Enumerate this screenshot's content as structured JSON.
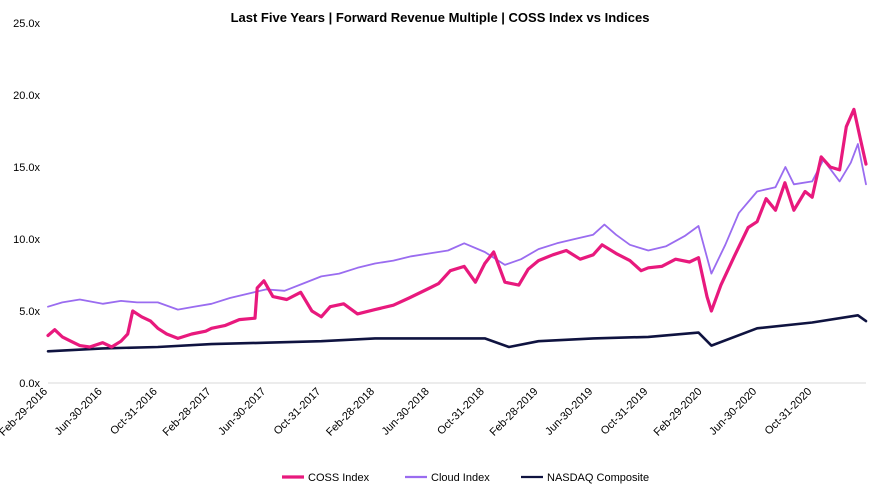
{
  "chart_data": {
    "type": "line",
    "title": "Last Five Years | Forward Revenue Multiple | COSS Index vs Indices",
    "xlabel": "",
    "ylabel": "",
    "ylim": [
      0,
      25
    ],
    "y_ticks": [
      "0.0x",
      "5.0x",
      "10.0x",
      "15.0x",
      "20.0x",
      "25.0x"
    ],
    "y_tick_values": [
      0,
      5,
      10,
      15,
      20,
      25
    ],
    "x_range": [
      "2016-02-29",
      "2021-02-28"
    ],
    "x_ticks": [
      {
        "label": "Feb-29-2016",
        "date": "2016-02-29"
      },
      {
        "label": "Jun-30-2016",
        "date": "2016-06-30"
      },
      {
        "label": "Oct-31-2016",
        "date": "2016-10-31"
      },
      {
        "label": "Feb-28-2017",
        "date": "2017-02-28"
      },
      {
        "label": "Jun-30-2017",
        "date": "2017-06-30"
      },
      {
        "label": "Oct-31-2017",
        "date": "2017-10-31"
      },
      {
        "label": "Feb-28-2018",
        "date": "2018-02-28"
      },
      {
        "label": "Jun-30-2018",
        "date": "2018-06-30"
      },
      {
        "label": "Oct-31-2018",
        "date": "2018-10-31"
      },
      {
        "label": "Feb-28-2019",
        "date": "2019-02-28"
      },
      {
        "label": "Jun-30-2019",
        "date": "2019-06-30"
      },
      {
        "label": "Oct-31-2019",
        "date": "2019-10-31"
      },
      {
        "label": "Feb-29-2020",
        "date": "2020-02-29"
      },
      {
        "label": "Jun-30-2020",
        "date": "2020-06-30"
      },
      {
        "label": "Oct-31-2020",
        "date": "2020-10-31"
      }
    ],
    "grid": false,
    "legend_position": "bottom",
    "series": [
      {
        "name": "COSS Index",
        "color": "#e8197d",
        "points": [
          [
            "2016-02-29",
            3.3
          ],
          [
            "2016-03-15",
            3.7
          ],
          [
            "2016-04-01",
            3.2
          ],
          [
            "2016-04-20",
            2.9
          ],
          [
            "2016-05-10",
            2.6
          ],
          [
            "2016-06-01",
            2.5
          ],
          [
            "2016-06-30",
            2.8
          ],
          [
            "2016-07-20",
            2.5
          ],
          [
            "2016-08-10",
            2.9
          ],
          [
            "2016-08-25",
            3.4
          ],
          [
            "2016-09-05",
            5.0
          ],
          [
            "2016-09-25",
            4.6
          ],
          [
            "2016-10-15",
            4.3
          ],
          [
            "2016-10-31",
            3.8
          ],
          [
            "2016-11-20",
            3.4
          ],
          [
            "2016-12-15",
            3.1
          ],
          [
            "2017-01-15",
            3.4
          ],
          [
            "2017-02-15",
            3.6
          ],
          [
            "2017-02-28",
            3.8
          ],
          [
            "2017-03-31",
            4.0
          ],
          [
            "2017-05-01",
            4.4
          ],
          [
            "2017-06-05",
            4.5
          ],
          [
            "2017-06-10",
            6.6
          ],
          [
            "2017-06-25",
            7.1
          ],
          [
            "2017-07-15",
            6.0
          ],
          [
            "2017-08-15",
            5.8
          ],
          [
            "2017-09-15",
            6.3
          ],
          [
            "2017-10-10",
            5.0
          ],
          [
            "2017-10-31",
            4.6
          ],
          [
            "2017-11-20",
            5.3
          ],
          [
            "2017-12-20",
            5.5
          ],
          [
            "2018-01-20",
            4.8
          ],
          [
            "2018-02-28",
            5.1
          ],
          [
            "2018-04-10",
            5.4
          ],
          [
            "2018-05-15",
            5.9
          ],
          [
            "2018-06-30",
            6.6
          ],
          [
            "2018-07-20",
            6.9
          ],
          [
            "2018-08-15",
            7.8
          ],
          [
            "2018-09-15",
            8.1
          ],
          [
            "2018-10-10",
            7.0
          ],
          [
            "2018-10-31",
            8.3
          ],
          [
            "2018-11-20",
            9.1
          ],
          [
            "2018-12-15",
            7.0
          ],
          [
            "2019-01-15",
            6.8
          ],
          [
            "2019-02-05",
            7.9
          ],
          [
            "2019-02-28",
            8.5
          ],
          [
            "2019-04-01",
            8.9
          ],
          [
            "2019-05-01",
            9.2
          ],
          [
            "2019-06-01",
            8.6
          ],
          [
            "2019-06-30",
            8.9
          ],
          [
            "2019-07-20",
            9.6
          ],
          [
            "2019-08-20",
            9.0
          ],
          [
            "2019-09-20",
            8.5
          ],
          [
            "2019-10-15",
            7.8
          ],
          [
            "2019-10-31",
            8.0
          ],
          [
            "2019-11-30",
            8.1
          ],
          [
            "2019-12-31",
            8.6
          ],
          [
            "2020-01-31",
            8.4
          ],
          [
            "2020-02-20",
            8.7
          ],
          [
            "2020-03-10",
            6.0
          ],
          [
            "2020-03-20",
            5.0
          ],
          [
            "2020-04-10",
            6.8
          ],
          [
            "2020-05-10",
            8.8
          ],
          [
            "2020-06-10",
            10.8
          ],
          [
            "2020-06-30",
            11.2
          ],
          [
            "2020-07-20",
            12.8
          ],
          [
            "2020-08-10",
            12.0
          ],
          [
            "2020-08-31",
            13.9
          ],
          [
            "2020-09-20",
            12.0
          ],
          [
            "2020-10-15",
            13.3
          ],
          [
            "2020-10-31",
            12.9
          ],
          [
            "2020-11-20",
            15.7
          ],
          [
            "2020-12-10",
            15.0
          ],
          [
            "2020-12-31",
            14.8
          ],
          [
            "2021-01-15",
            17.8
          ],
          [
            "2021-02-01",
            19.0
          ],
          [
            "2021-02-15",
            17.0
          ],
          [
            "2021-02-28",
            15.2
          ]
        ]
      },
      {
        "name": "Cloud Index",
        "color": "#9a6cf0",
        "points": [
          [
            "2016-02-29",
            5.3
          ],
          [
            "2016-04-01",
            5.6
          ],
          [
            "2016-05-10",
            5.8
          ],
          [
            "2016-06-30",
            5.5
          ],
          [
            "2016-08-10",
            5.7
          ],
          [
            "2016-09-15",
            5.6
          ],
          [
            "2016-10-31",
            5.6
          ],
          [
            "2016-12-15",
            5.1
          ],
          [
            "2017-01-20",
            5.3
          ],
          [
            "2017-02-28",
            5.5
          ],
          [
            "2017-04-10",
            5.9
          ],
          [
            "2017-05-20",
            6.2
          ],
          [
            "2017-06-30",
            6.5
          ],
          [
            "2017-08-10",
            6.4
          ],
          [
            "2017-09-20",
            6.9
          ],
          [
            "2017-10-31",
            7.4
          ],
          [
            "2017-12-10",
            7.6
          ],
          [
            "2018-01-20",
            8.0
          ],
          [
            "2018-02-28",
            8.3
          ],
          [
            "2018-04-10",
            8.5
          ],
          [
            "2018-05-20",
            8.8
          ],
          [
            "2018-06-30",
            9.0
          ],
          [
            "2018-08-10",
            9.2
          ],
          [
            "2018-09-15",
            9.7
          ],
          [
            "2018-10-31",
            9.1
          ],
          [
            "2018-12-15",
            8.2
          ],
          [
            "2019-01-20",
            8.6
          ],
          [
            "2019-02-28",
            9.3
          ],
          [
            "2019-04-10",
            9.7
          ],
          [
            "2019-05-20",
            10.0
          ],
          [
            "2019-06-30",
            10.3
          ],
          [
            "2019-07-25",
            11.0
          ],
          [
            "2019-08-20",
            10.3
          ],
          [
            "2019-09-20",
            9.6
          ],
          [
            "2019-10-31",
            9.2
          ],
          [
            "2019-12-10",
            9.5
          ],
          [
            "2020-01-20",
            10.2
          ],
          [
            "2020-02-20",
            10.9
          ],
          [
            "2020-03-20",
            7.6
          ],
          [
            "2020-04-20",
            9.6
          ],
          [
            "2020-05-20",
            11.8
          ],
          [
            "2020-06-30",
            13.3
          ],
          [
            "2020-08-10",
            13.6
          ],
          [
            "2020-09-01",
            15.0
          ],
          [
            "2020-09-20",
            13.8
          ],
          [
            "2020-10-31",
            14.0
          ],
          [
            "2020-11-25",
            15.5
          ],
          [
            "2020-12-31",
            14.0
          ],
          [
            "2021-01-25",
            15.3
          ],
          [
            "2021-02-10",
            16.6
          ],
          [
            "2021-02-28",
            13.8
          ]
        ]
      },
      {
        "name": "NASDAQ Composite",
        "color": "#0f1340",
        "points": [
          [
            "2016-02-29",
            2.2
          ],
          [
            "2016-06-30",
            2.4
          ],
          [
            "2016-10-31",
            2.5
          ],
          [
            "2017-02-28",
            2.7
          ],
          [
            "2017-06-30",
            2.8
          ],
          [
            "2017-10-31",
            2.9
          ],
          [
            "2018-02-28",
            3.1
          ],
          [
            "2018-06-30",
            3.1
          ],
          [
            "2018-10-31",
            3.1
          ],
          [
            "2018-12-24",
            2.5
          ],
          [
            "2019-02-28",
            2.9
          ],
          [
            "2019-06-30",
            3.1
          ],
          [
            "2019-10-31",
            3.2
          ],
          [
            "2020-02-20",
            3.5
          ],
          [
            "2020-03-20",
            2.6
          ],
          [
            "2020-06-30",
            3.8
          ],
          [
            "2020-10-31",
            4.2
          ],
          [
            "2021-02-10",
            4.7
          ],
          [
            "2021-02-28",
            4.3
          ]
        ]
      }
    ]
  }
}
